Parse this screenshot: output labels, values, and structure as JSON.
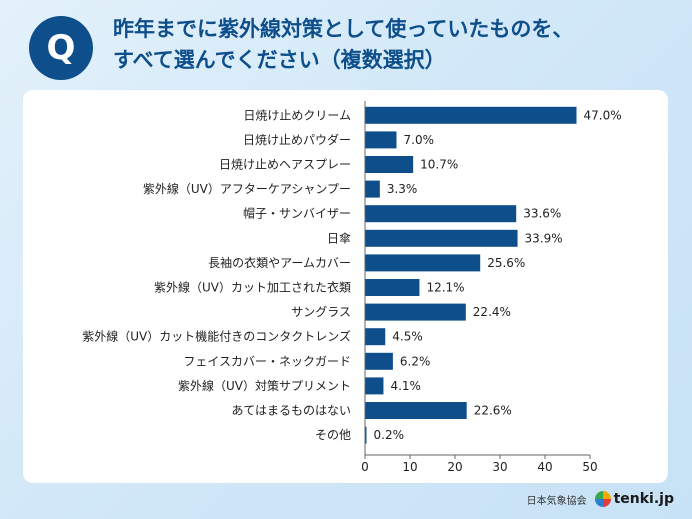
{
  "header": {
    "badge": "Q",
    "title_line1": "昨年までに紫外線対策として使っていたものを、",
    "title_line2": "すべて選んでください（複数選択）"
  },
  "footer": {
    "org": "日本気象協会",
    "brand": "tenki.jp"
  },
  "colors": {
    "bar": "#0e4f8b",
    "title": "#0e4f8b"
  },
  "chart_data": {
    "type": "bar",
    "orientation": "horizontal",
    "categories": [
      "日焼け止めクリーム",
      "日焼け止めパウダー",
      "日焼け止めヘアスプレー",
      "紫外線（UV）アフターケアシャンプー",
      "帽子・サンバイザー",
      "日傘",
      "長袖の衣類やアームカバー",
      "紫外線（UV）カット加工された衣類",
      "サングラス",
      "紫外線（UV）カット機能付きのコンタクトレンズ",
      "フェイスカバー・ネックガード",
      "紫外線（UV）対策サプリメント",
      "あてはまるものはない",
      "その他"
    ],
    "values": [
      47.0,
      7.0,
      10.7,
      3.3,
      33.6,
      33.9,
      25.6,
      12.1,
      22.4,
      4.5,
      6.2,
      4.1,
      22.6,
      0.2
    ],
    "value_labels": [
      "47.0%",
      "7.0%",
      "10.7%",
      "3.3%",
      "33.6%",
      "33.9%",
      "25.6%",
      "12.1%",
      "22.4%",
      "4.5%",
      "6.2%",
      "4.1%",
      "22.6%",
      "0.2%"
    ],
    "xlim": [
      0,
      50
    ],
    "xticks": [
      0,
      10,
      20,
      30,
      40,
      50
    ],
    "grid": false,
    "legend": "none"
  }
}
